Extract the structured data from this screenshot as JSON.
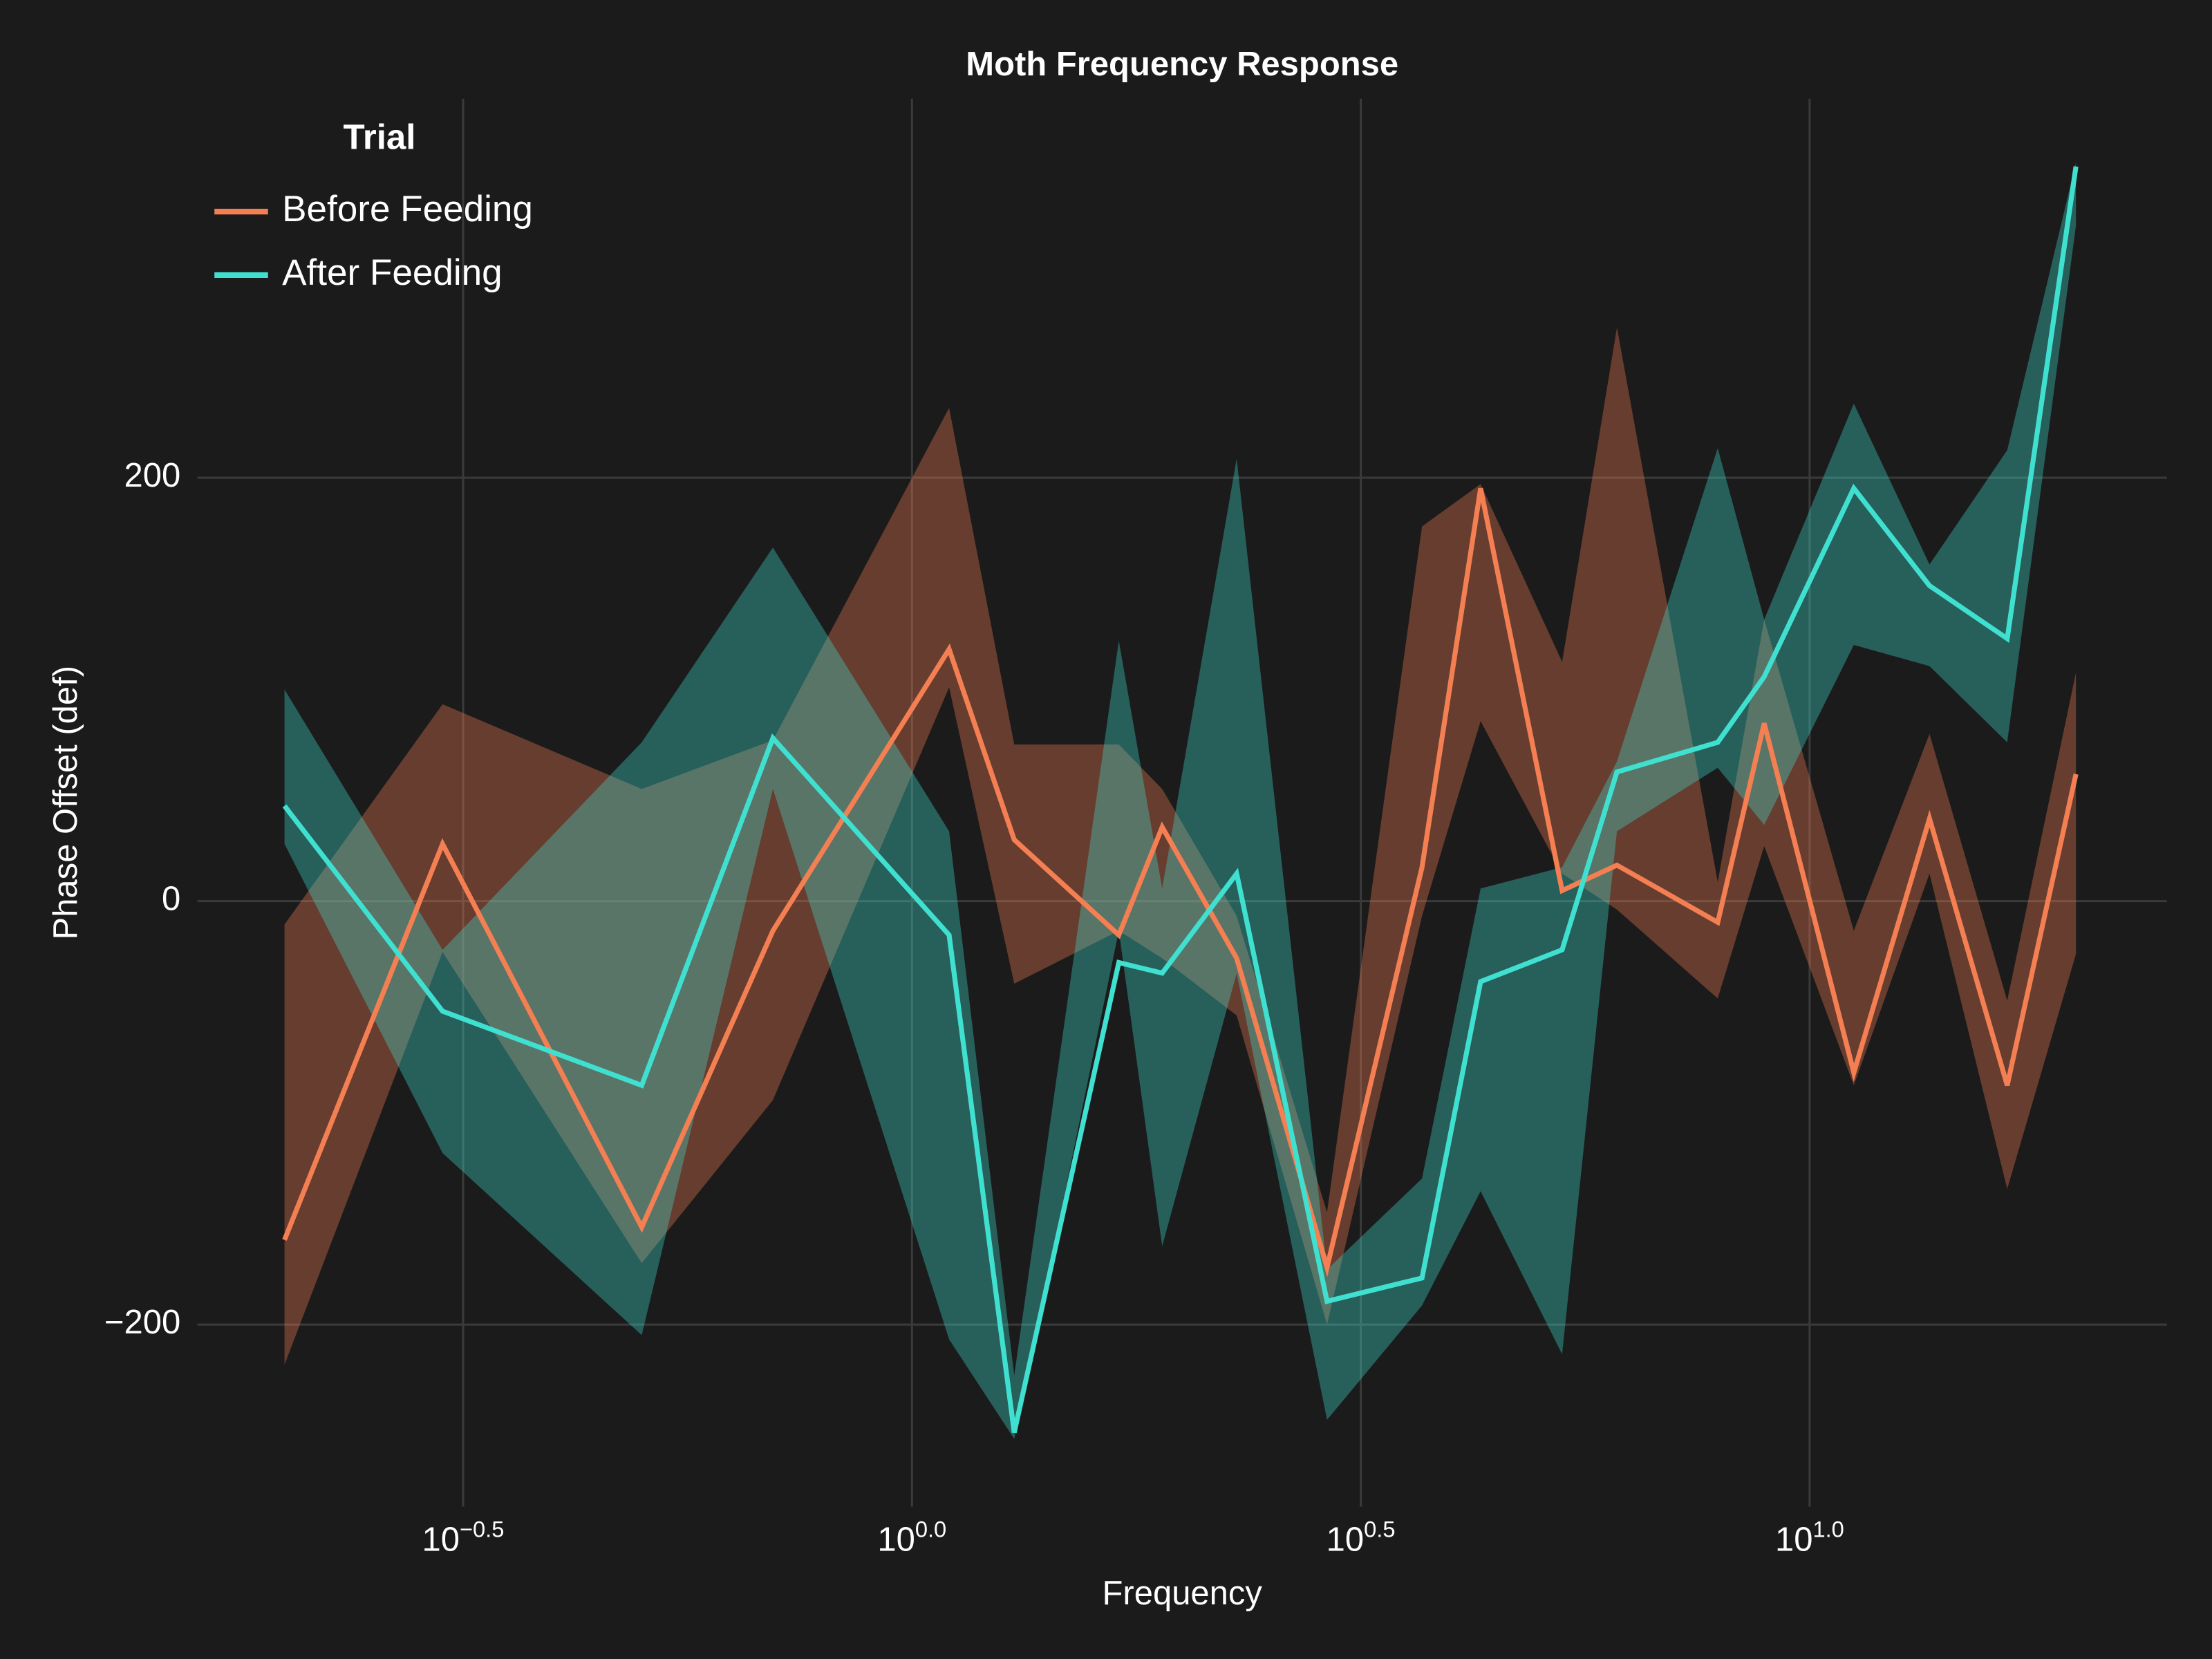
{
  "chart_data": {
    "type": "line",
    "title": "Moth Frequency Response",
    "x_label": "Frequency",
    "y_label": "Phase Offset (def)",
    "x": [
      0.2,
      0.3,
      0.5,
      0.7,
      1.1,
      1.3,
      1.7,
      1.9,
      2.3,
      2.9,
      3.7,
      4.3,
      5.3,
      6.1,
      7.9,
      8.9,
      11.2,
      13.6,
      16.6,
      19.8
    ],
    "log_x": true,
    "xlim": [
      0.16,
      25
    ],
    "xticks": [
      {
        "value": 0.31622776601683794,
        "label": "10",
        "exponent": "−0.5"
      },
      {
        "value": 1,
        "label": "10",
        "exponent": "0.0"
      },
      {
        "value": 3.1622776601683795,
        "label": "10",
        "exponent": "0.5"
      },
      {
        "value": 10,
        "label": "10",
        "exponent": "1.0"
      }
    ],
    "ylim": [
      -286,
      379
    ],
    "yticks": [
      {
        "value": -200,
        "label": "−200"
      },
      0,
      200
    ],
    "grid": true,
    "legend_title": "Trial",
    "legend_position": "upper left",
    "band_opacity": 0.35,
    "series": [
      {
        "name": "Before Feeding",
        "color": "#f47f52",
        "values": [
          -160,
          27,
          -154,
          -14,
          119,
          29,
          -16,
          35,
          -27,
          -173,
          16,
          195,
          5,
          17,
          -10,
          84,
          -81,
          39,
          -87,
          60
        ],
        "upper": [
          -11,
          93,
          53,
          76,
          233,
          74,
          74,
          53,
          -7,
          -147,
          177,
          197,
          113,
          271,
          9,
          133,
          -14,
          79,
          -47,
          108
        ],
        "lower": [
          -219,
          -24,
          -171,
          -94,
          101,
          -39,
          -14,
          -27,
          -54,
          -200,
          -7,
          85,
          13,
          -4,
          -46,
          26,
          -87,
          13,
          -136,
          -25
        ]
      },
      {
        "name": "After Feeding",
        "color": "#40e0d0",
        "values": [
          45,
          -52,
          -87,
          77,
          -16,
          -251,
          -29,
          -34,
          13,
          -189,
          -178,
          -38,
          -23,
          61,
          75,
          106,
          195,
          149,
          124,
          347
        ],
        "upper": [
          100,
          -23,
          75,
          167,
          33,
          -224,
          123,
          6,
          209,
          -174,
          -131,
          6,
          16,
          66,
          214,
          133,
          235,
          159,
          213,
          349
        ],
        "lower": [
          27,
          -119,
          -205,
          53,
          -207,
          -254,
          -14,
          -163,
          -34,
          -245,
          -191,
          -137,
          -214,
          33,
          63,
          36,
          121,
          111,
          75,
          319
        ]
      }
    ]
  }
}
